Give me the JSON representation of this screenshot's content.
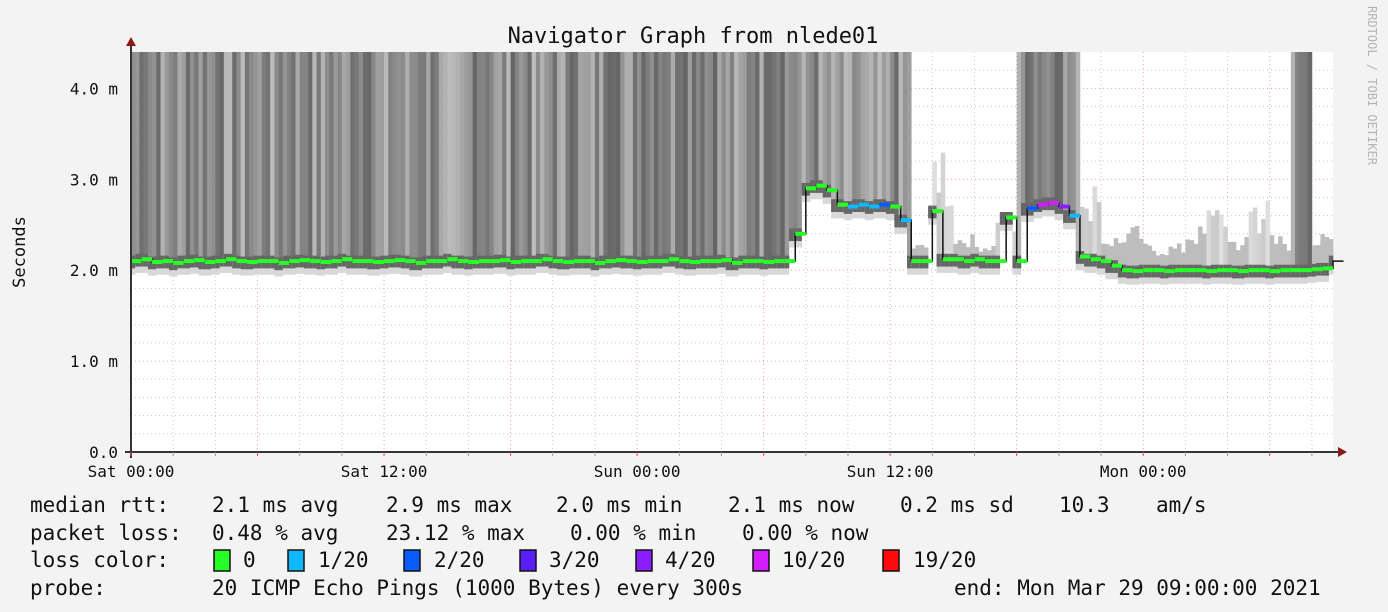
{
  "chart_data": {
    "type": "line",
    "title": "Navigator Graph from nlede01",
    "ylabel": "Seconds",
    "watermark": "RRDTOOL / TOBI OETIKER",
    "ylim_ms": [
      0,
      4.4
    ],
    "y_ticks": [
      {
        "v": 0,
        "label": "0.0"
      },
      {
        "v": 1,
        "label": "1.0 m"
      },
      {
        "v": 2,
        "label": "2.0 m"
      },
      {
        "v": 3,
        "label": "3.0 m"
      },
      {
        "v": 4,
        "label": "4.0 m"
      }
    ],
    "x_start": "Sat 00:00",
    "x_end": "Mon 09:00",
    "xlim_hours_from_sat_0000": [
      0,
      57
    ],
    "x_ticks": [
      {
        "h": 0,
        "label": "Sat 00:00"
      },
      {
        "h": 12,
        "label": "Sat 12:00"
      },
      {
        "h": 24,
        "label": "Sun 00:00"
      },
      {
        "h": 36,
        "label": "Sun 12:00"
      },
      {
        "h": 48,
        "label": "Mon 00:00"
      }
    ],
    "grid": true,
    "median_rtt_ms_every_30min": [
      2.1,
      2.12,
      2.09,
      2.1,
      2.08,
      2.1,
      2.11,
      2.09,
      2.1,
      2.12,
      2.1,
      2.09,
      2.1,
      2.1,
      2.08,
      2.1,
      2.11,
      2.1,
      2.09,
      2.1,
      2.12,
      2.1,
      2.1,
      2.09,
      2.1,
      2.11,
      2.1,
      2.08,
      2.1,
      2.1,
      2.12,
      2.1,
      2.09,
      2.1,
      2.1,
      2.11,
      2.09,
      2.1,
      2.1,
      2.12,
      2.1,
      2.09,
      2.1,
      2.1,
      2.08,
      2.1,
      2.11,
      2.1,
      2.09,
      2.1,
      2.1,
      2.12,
      2.1,
      2.09,
      2.1,
      2.1,
      2.11,
      2.08,
      2.1,
      2.1,
      2.09,
      2.1,
      2.1,
      2.4,
      2.9,
      2.93,
      2.88,
      2.72,
      2.7,
      2.72,
      2.7,
      2.72,
      2.7,
      2.55,
      2.1,
      2.1,
      2.65,
      2.12,
      2.12,
      2.1,
      2.12,
      2.1,
      2.1,
      2.58,
      2.1,
      2.68,
      2.72,
      2.74,
      2.7,
      2.6,
      2.15,
      2.12,
      2.1,
      2.05,
      2.0,
      1.99,
      2.0,
      2.0,
      1.99,
      2.0,
      2.0,
      2.0,
      1.99,
      2.0,
      2.0,
      1.99,
      2.0,
      2.0,
      1.99,
      2.0,
      2.0,
      2.0,
      2.01,
      2.02,
      2.1
    ],
    "loss_events": [
      {
        "h": 34,
        "loss": "1/20"
      },
      {
        "h": 34.5,
        "loss": "1/20"
      },
      {
        "h": 35,
        "loss": "1/20"
      },
      {
        "h": 35.5,
        "loss": "2/20"
      },
      {
        "h": 36.5,
        "loss": "1/20"
      },
      {
        "h": 42.5,
        "loss": "2/20"
      },
      {
        "h": 43,
        "loss": "10/20"
      },
      {
        "h": 43.5,
        "loss": "10/20"
      },
      {
        "h": 44,
        "loss": "4/20"
      },
      {
        "h": 44.5,
        "loss": "1/20"
      }
    ],
    "smoke_top_ms_hourly": [
      4.4,
      4.4,
      4.4,
      4.4,
      4.4,
      4.4,
      4.4,
      4.4,
      4.4,
      4.4,
      4.4,
      4.4,
      4.4,
      4.4,
      4.4,
      4.4,
      4.4,
      4.4,
      4.4,
      4.4,
      4.4,
      4.4,
      4.4,
      4.4,
      4.4,
      4.4,
      4.4,
      4.4,
      4.4,
      4.4,
      4.4,
      4.4,
      4.4,
      4.4,
      4.4,
      4.4,
      4.4,
      2.3,
      3.3,
      2.4,
      2.3,
      2.6,
      4.4,
      4.4,
      4.4,
      3.0,
      2.4,
      2.5,
      2.3,
      2.3,
      2.5,
      2.8,
      2.4,
      2.9,
      2.4,
      4.4,
      2.4
    ],
    "loss_colors": [
      {
        "label": "0",
        "color": "#26ff26"
      },
      {
        "label": "1/20",
        "color": "#12b8ff"
      },
      {
        "label": "2/20",
        "color": "#0a5cff"
      },
      {
        "label": "3/20",
        "color": "#5a1eff"
      },
      {
        "label": "4/20",
        "color": "#8a1eff"
      },
      {
        "label": "10/20",
        "color": "#d21eff"
      },
      {
        "label": "19/20",
        "color": "#ff0a0a"
      }
    ]
  },
  "legend": {
    "rtt": {
      "label": "median rtt:",
      "avg": "2.1 ms avg",
      "max": "2.9 ms max",
      "min": "2.0 ms min",
      "now": "2.1 ms now",
      "sd": "0.2 ms sd",
      "ams": "10.3",
      "ams_unit": "am/s"
    },
    "loss": {
      "label": "packet loss:",
      "avg": "0.48 % avg",
      "max": "23.12 % max",
      "min": "0.00 % min",
      "now": "0.00 % now"
    },
    "color_label": "loss color:",
    "probe": {
      "label": "probe:",
      "value": "20 ICMP Echo Pings (1000 Bytes) every 300s",
      "end": "end: Mon Mar 29 09:00:00 2021"
    }
  },
  "colors": {
    "background": "#f3f3f3",
    "plot": "#ffffff",
    "major_grid": "#e8a0a0",
    "minor_grid": "#c8c8c8",
    "axis": "#333333",
    "arrow": "#8b1a1a"
  }
}
